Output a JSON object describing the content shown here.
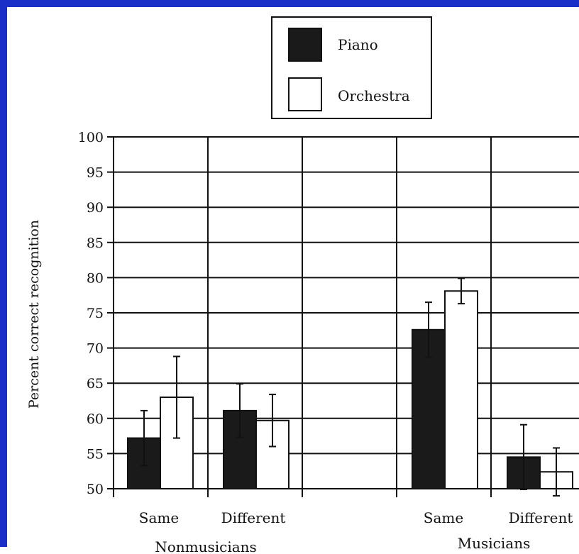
{
  "chart_data": {
    "type": "bar",
    "ylabel": "Percent correct recognition",
    "ylim": [
      50,
      100
    ],
    "yticks": [
      50,
      55,
      60,
      65,
      70,
      75,
      80,
      85,
      90,
      95,
      100
    ],
    "grid": true,
    "legend_position": "top-center",
    "groups": [
      {
        "name": "Nonmusicians",
        "categories": [
          "Same",
          "Different"
        ]
      },
      {
        "name": "Musicians",
        "categories": [
          "Same",
          "Different"
        ]
      }
    ],
    "categories": [
      "Same",
      "Different",
      "Same",
      "Different"
    ],
    "series": [
      {
        "name": "Piano",
        "color": "#1a1a1a",
        "values": [
          57.2,
          61.1,
          72.6,
          54.5
        ],
        "errors": [
          3.9,
          3.8,
          3.9,
          4.6
        ]
      },
      {
        "name": "Orchestra",
        "color": "#ffffff",
        "values": [
          63.0,
          59.7,
          78.1,
          52.4
        ],
        "errors": [
          5.8,
          3.7,
          1.8,
          3.4
        ]
      }
    ]
  }
}
